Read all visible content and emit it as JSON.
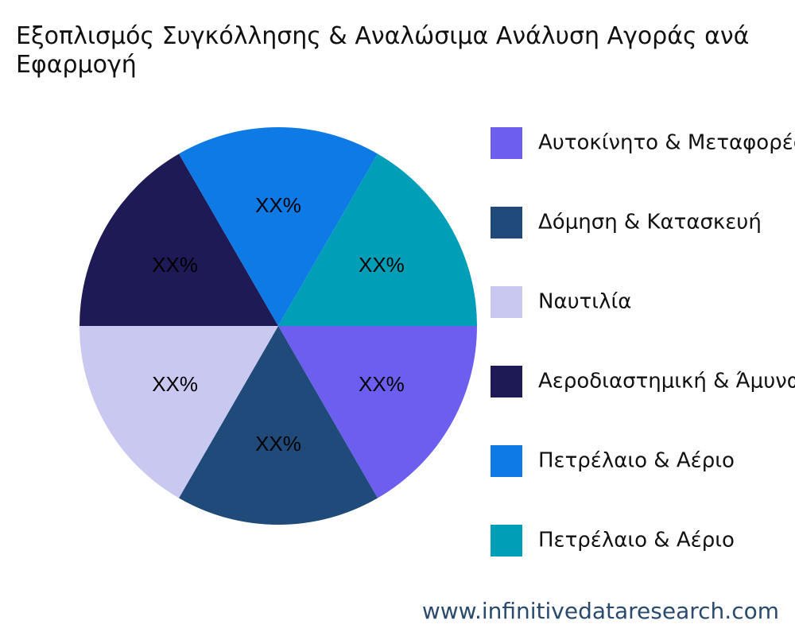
{
  "chart_data": {
    "type": "pie",
    "title": "Εξοπλισμός Συγκόλλησης & Αναλώσιμα Ανάλυση Αγοράς ανά Εφαρμογή",
    "categories": [
      "Αυτοκίνητο & Μεταφορές",
      "Δόμηση & Κατασκευή",
      "Ναυτιλία",
      "Αεροδιαστημική & Άμυνα",
      "Πετρέλαιο & Αέριο",
      "Πετρέλαιο & Αέριο"
    ],
    "values": [
      16.67,
      16.67,
      16.67,
      16.67,
      16.67,
      16.67
    ],
    "value_labels": [
      "XX%",
      "XX%",
      "XX%",
      "XX%",
      "XX%",
      "XX%"
    ],
    "colors": [
      "#6c5ff0",
      "#1f4a7a",
      "#c8c8f0",
      "#1e1a55",
      "#0e7ae6",
      "#009fb7"
    ],
    "source": "www.infinitivedataresearch.com"
  }
}
